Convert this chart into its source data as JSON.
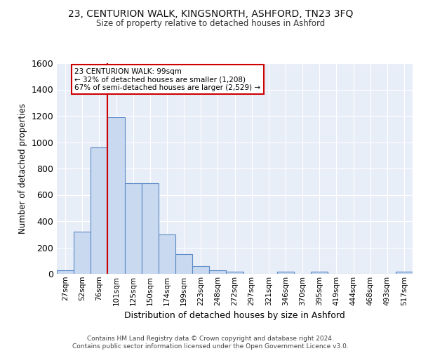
{
  "title1": "23, CENTURION WALK, KINGSNORTH, ASHFORD, TN23 3FQ",
  "title2": "Size of property relative to detached houses in Ashford",
  "xlabel": "Distribution of detached houses by size in Ashford",
  "ylabel": "Number of detached properties",
  "bar_labels": [
    "27sqm",
    "52sqm",
    "76sqm",
    "101sqm",
    "125sqm",
    "150sqm",
    "174sqm",
    "199sqm",
    "223sqm",
    "248sqm",
    "272sqm",
    "297sqm",
    "321sqm",
    "346sqm",
    "370sqm",
    "395sqm",
    "419sqm",
    "444sqm",
    "468sqm",
    "493sqm",
    "517sqm"
  ],
  "bar_values": [
    25,
    320,
    960,
    1190,
    690,
    690,
    300,
    150,
    60,
    25,
    15,
    0,
    0,
    15,
    0,
    15,
    0,
    0,
    0,
    0,
    15
  ],
  "bar_color": "#c9d9f0",
  "bar_edge_color": "#5a8ac6",
  "vline_color": "#cc0000",
  "annotation_text": "23 CENTURION WALK: 99sqm\n← 32% of detached houses are smaller (1,208)\n67% of semi-detached houses are larger (2,529) →",
  "annotation_box_color": "#ffffff",
  "annotation_box_edge": "#cc0000",
  "ylim": [
    0,
    1600
  ],
  "yticks": [
    0,
    200,
    400,
    600,
    800,
    1000,
    1200,
    1400,
    1600
  ],
  "footer": "Contains HM Land Registry data © Crown copyright and database right 2024.\nContains public sector information licensed under the Open Government Licence v3.0.",
  "plot_bg_color": "#e8eef8",
  "grid_color": "#ffffff"
}
